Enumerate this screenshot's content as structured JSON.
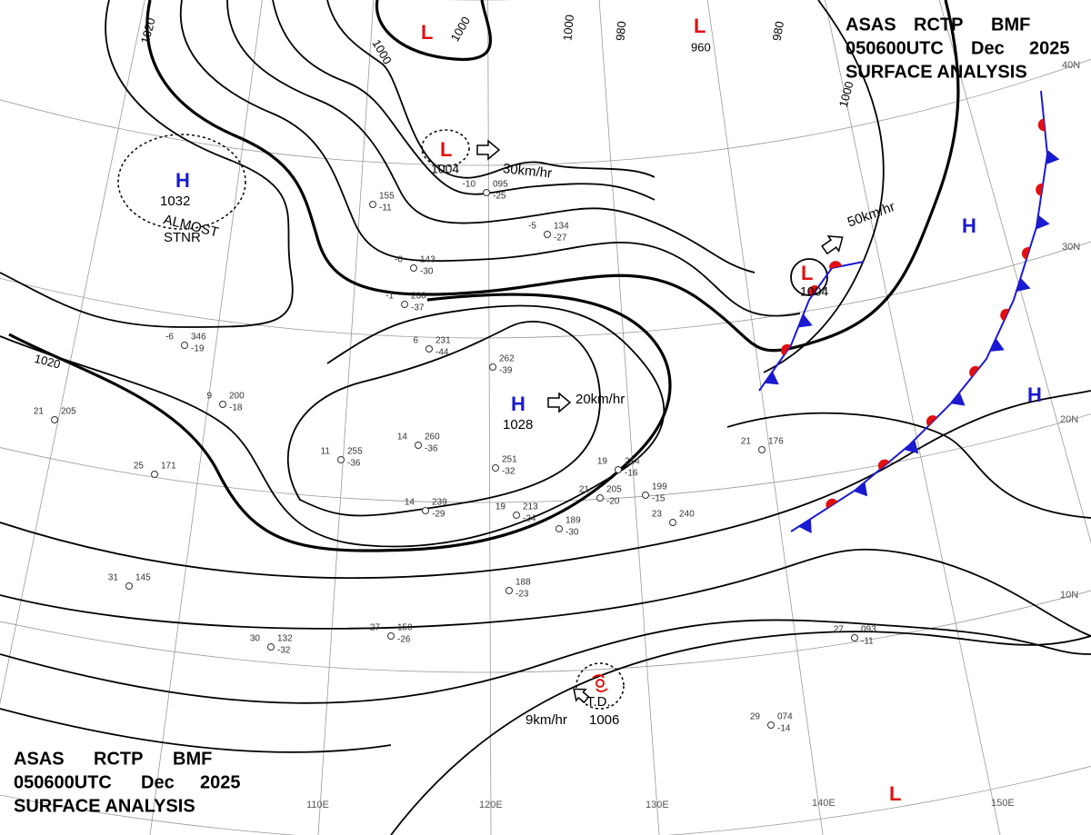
{
  "header": {
    "agency": "ASAS",
    "station": "RCTP",
    "issuer": "BMF",
    "time": "050600UTC",
    "month": "Dec",
    "year": "2025",
    "product": "SURFACE ANALYSIS"
  },
  "systems": [
    {
      "type": "H",
      "pressure": 1032,
      "note": [
        "ALMOST",
        "STNR"
      ]
    },
    {
      "type": "H",
      "pressure": 1028,
      "motion": "20km/hr"
    },
    {
      "type": "L",
      "pressure": 1004,
      "motion": "30km/hr"
    },
    {
      "type": "L",
      "pressure": 1004,
      "motion": "50km/hr"
    },
    {
      "type": "L"
    },
    {
      "type": "L"
    },
    {
      "type": "H"
    },
    {
      "type": "H"
    },
    {
      "type": "L"
    },
    {
      "type": "T.D.",
      "pressure": 1006,
      "motion": "9km/hr"
    }
  ],
  "isobar_labels": [
    1020,
    1000,
    1000,
    1000,
    960,
    980,
    980,
    1000,
    1020
  ],
  "latitudes": [
    "40N",
    "30N",
    "20N",
    "10N"
  ],
  "longitudes": [
    "110E",
    "120E",
    "130E",
    "140E",
    "150E"
  ],
  "stations": [
    {
      "temp": "-6",
      "pressure": "346",
      "dew": "-19"
    },
    {
      "temp": "9",
      "pressure": "200",
      "dew": "-18"
    },
    {
      "temp": "14",
      "pressure": "260",
      "dew": "-36"
    },
    {
      "temp": "11",
      "pressure": "255",
      "dew": "-36"
    },
    {
      "temp": "14",
      "pressure": "239",
      "dew": "-29"
    },
    {
      "pressure": "251",
      "dew": "-32"
    },
    {
      "temp": "19",
      "pressure": "213",
      "dew": "-24"
    },
    {
      "pressure": "189",
      "dew": "-30"
    },
    {
      "temp": "21",
      "pressure": "205",
      "dew": "-20"
    },
    {
      "temp": "19",
      "pressure": "214",
      "dew": "-16"
    },
    {
      "pressure": "262",
      "dew": "-39"
    },
    {
      "temp": "6",
      "pressure": "231",
      "dew": "-44"
    },
    {
      "temp": "-1",
      "pressure": "230",
      "dew": "-37"
    },
    {
      "temp": "-0",
      "pressure": "143",
      "dew": "-30"
    },
    {
      "temp": "-5",
      "pressure": "134",
      "dew": "-27"
    },
    {
      "temp": "-10",
      "pressure": "095",
      "dew": "-25"
    },
    {
      "pressure": "155",
      "dew": "-11"
    },
    {
      "pressure": "188",
      "dew": "-23"
    },
    {
      "temp": "23",
      "pressure": "240"
    },
    {
      "pressure": "199",
      "dew": "-15"
    },
    {
      "temp": "27",
      "pressure": "093",
      "dew": "-11"
    },
    {
      "temp": "29",
      "pressure": "074",
      "dew": "-14"
    },
    {
      "temp": "27",
      "pressure": "150",
      "dew": "-26"
    },
    {
      "temp": "30",
      "pressure": "132",
      "dew": "-32"
    },
    {
      "temp": "21",
      "pressure": "176"
    },
    {
      "temp": "25",
      "pressure": "171"
    },
    {
      "temp": "21",
      "pressure": "205"
    },
    {
      "temp": "31",
      "pressure": "145"
    }
  ]
}
